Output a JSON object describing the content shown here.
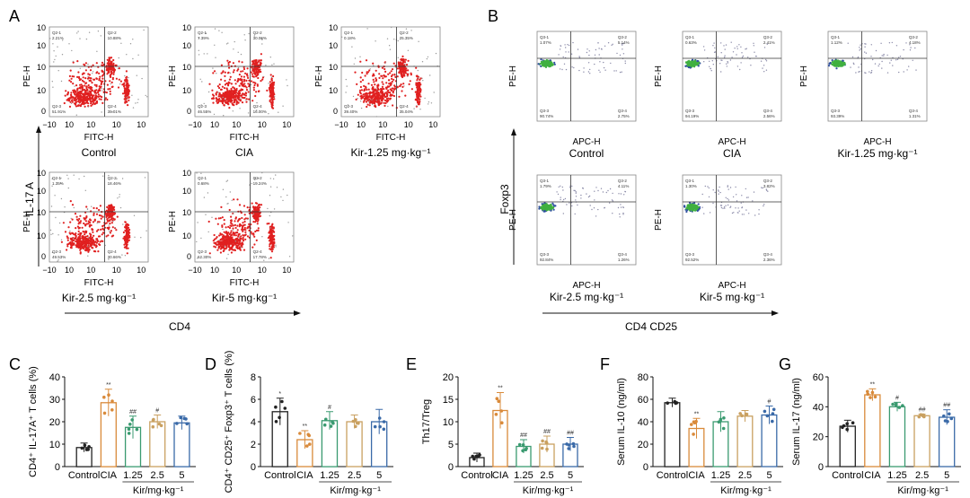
{
  "figure": {
    "panel_letters": [
      "A",
      "B",
      "C",
      "D",
      "E",
      "F",
      "G"
    ],
    "groups": [
      "Control",
      "CIA",
      "Kir-1.25 mg·kg⁻¹",
      "Kir-2.5 mg·kg⁻¹",
      "Kir-5 mg·kg⁻¹"
    ],
    "panel_a": {
      "x_axis_label": "FITC-H",
      "y_axis_label": "PE-H",
      "x_ticks": [
        "−10",
        "10",
        "10",
        "10",
        "10"
      ],
      "y_ticks": [
        "10",
        "10",
        "10",
        "10",
        "0"
      ],
      "outer_x_label": "CD4",
      "outer_y_label": "IL-17 A",
      "quadrant_ids": [
        "Q2-1",
        "Q2-2",
        "Q2-3",
        "Q2-4"
      ],
      "quadrant_values": [
        [
          "2.21%",
          "10.88%",
          "51.91%",
          "35.01%"
        ],
        [
          "7.39%",
          "30.06%",
          "46.55%",
          "16.00%"
        ],
        [
          "0.18%",
          "25.35%",
          "39.40%",
          "35.04%"
        ],
        [
          "1.35%",
          "18.46%",
          "49.53%",
          "30.66%"
        ],
        [
          "0.68%",
          "19.24%",
          "62.30%",
          "17.78%"
        ]
      ]
    },
    "panel_b": {
      "x_axis_label": "APC-H",
      "y_axis_label": "PE-H",
      "outer_x_label": "CD4 CD25",
      "outer_y_label": "Foxp3",
      "quadrant_ids": [
        "Q3-1",
        "Q3-2",
        "Q3-3",
        "Q3-4"
      ],
      "quadrant_values": [
        [
          "1.07%",
          "5.14%",
          "90.74%",
          "2.75%"
        ],
        [
          "0.63%",
          "2.41%",
          "94.19%",
          "2.56%"
        ],
        [
          "1.12%",
          "4.18%",
          "93.39%",
          "1.31%"
        ],
        [
          "1.79%",
          "4.11%",
          "92.84%",
          "1.26%"
        ],
        [
          "1.30%",
          "3.82%",
          "92.52%",
          "2.36%"
        ]
      ]
    },
    "bar_x_labels": [
      "Control",
      "CIA",
      "1.25",
      "2.5",
      "5"
    ],
    "bar_x_group_label": "Kir/mg·kg⁻¹"
  },
  "chart_data": [
    {
      "panel": "C",
      "type": "bar",
      "ylabel": "CD4⁺ IL-17A⁺ T cells (%)",
      "categories": [
        "Control",
        "CIA",
        "1.25",
        "2.5",
        "5"
      ],
      "values": [
        8.5,
        28.5,
        17.5,
        20,
        19.5
      ],
      "errors": [
        2,
        6,
        5,
        3,
        3
      ],
      "ylim": [
        0,
        40
      ],
      "yticks": [
        "0",
        "10",
        "20",
        "30",
        "40"
      ],
      "marks": [
        "",
        "**",
        "##",
        "#",
        ""
      ]
    },
    {
      "panel": "D",
      "type": "bar",
      "ylabel": "CD4⁺ CD25⁺ Foxp3⁺ T cells (%)",
      "categories": [
        "Control",
        "CIA",
        "1.25",
        "2.5",
        "5"
      ],
      "values": [
        4.9,
        2.4,
        4.1,
        4.0,
        4.0
      ],
      "errors": [
        1.2,
        0.8,
        0.8,
        0.6,
        1.1
      ],
      "ylim": [
        0,
        8
      ],
      "yticks": [
        "0",
        "2",
        "4",
        "6",
        "8"
      ],
      "marks": [
        "*",
        "**",
        "#",
        "",
        ""
      ]
    },
    {
      "panel": "E",
      "type": "bar",
      "ylabel": "Th17/Treg",
      "categories": [
        "Control",
        "CIA",
        "1.25",
        "2.5",
        "5"
      ],
      "values": [
        2,
        12.5,
        4.5,
        5,
        5
      ],
      "errors": [
        1,
        4,
        1.5,
        1.8,
        1.5
      ],
      "ylim": [
        0,
        20
      ],
      "yticks": [
        "0",
        "5",
        "10",
        "15",
        "20"
      ],
      "marks": [
        "",
        "**",
        "##",
        "##",
        "##"
      ]
    },
    {
      "panel": "F",
      "type": "bar",
      "ylabel": "Serum IL-10 (ng/ml)",
      "categories": [
        "Control",
        "CIA",
        "1.25",
        "2.5",
        "5"
      ],
      "values": [
        57,
        34,
        40,
        45,
        46
      ],
      "errors": [
        4,
        9,
        9,
        5,
        8
      ],
      "ylim": [
        0,
        80
      ],
      "yticks": [
        "0",
        "20",
        "40",
        "60",
        "80"
      ],
      "marks": [
        "",
        "**",
        "",
        "",
        "#"
      ]
    },
    {
      "panel": "G",
      "type": "bar",
      "ylabel": "Serum IL-17 (ng/ml)",
      "categories": [
        "Control",
        "CIA",
        "1.25",
        "2.5",
        "5"
      ],
      "values": [
        27,
        48,
        40,
        34,
        33
      ],
      "errors": [
        4,
        4,
        3,
        1,
        5
      ],
      "ylim": [
        0,
        60
      ],
      "yticks": [
        "0",
        "20",
        "40",
        "60"
      ],
      "marks": [
        "",
        "**",
        "#",
        "##",
        "##"
      ]
    }
  ],
  "colors": {
    "control": "#222222",
    "cia": "#d98a3a",
    "k125": "#3a9a70",
    "k25": "#c9a060",
    "k5": "#3a6aa8",
    "red_dots": "#e02020",
    "blue_dots": "#3050a0",
    "green_core": "#40b040"
  }
}
